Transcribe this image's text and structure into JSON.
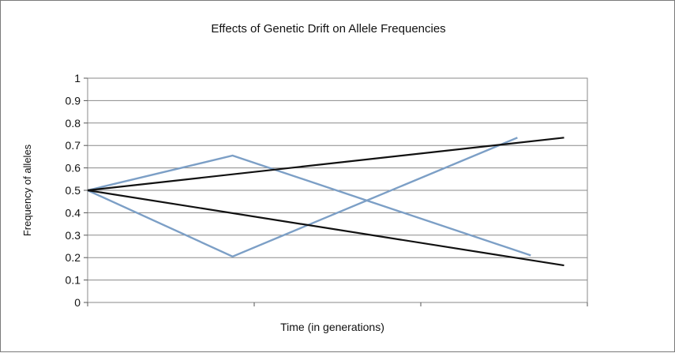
{
  "chart_data": {
    "type": "line",
    "title": "Effects of Genetic Drift on Allele Frequencies",
    "xlabel": "Time (in generations)",
    "ylabel": "Frequency of alleles",
    "ylim": [
      0,
      1
    ],
    "y_ticks": [
      "0",
      "0.1",
      "0.2",
      "0.3",
      "0.4",
      "0.5",
      "0.6",
      "0.7",
      "0.8",
      "0.9",
      "1"
    ],
    "x_categories": [
      "",
      "",
      ""
    ],
    "grid": true,
    "legend": "none",
    "series": [
      {
        "color": "#7c9fc6",
        "points": [
          [
            0,
            0.5
          ],
          [
            0.87,
            0.655
          ],
          [
            2.66,
            0.21
          ]
        ]
      },
      {
        "color": "#7c9fc6",
        "points": [
          [
            0,
            0.5
          ],
          [
            0.87,
            0.205
          ],
          [
            2.58,
            0.735
          ]
        ]
      },
      {
        "color": "#111111",
        "points": [
          [
            0,
            0.5
          ],
          [
            2.86,
            0.735
          ]
        ]
      },
      {
        "color": "#111111",
        "points": [
          [
            0,
            0.5
          ],
          [
            2.86,
            0.165
          ]
        ]
      }
    ]
  }
}
